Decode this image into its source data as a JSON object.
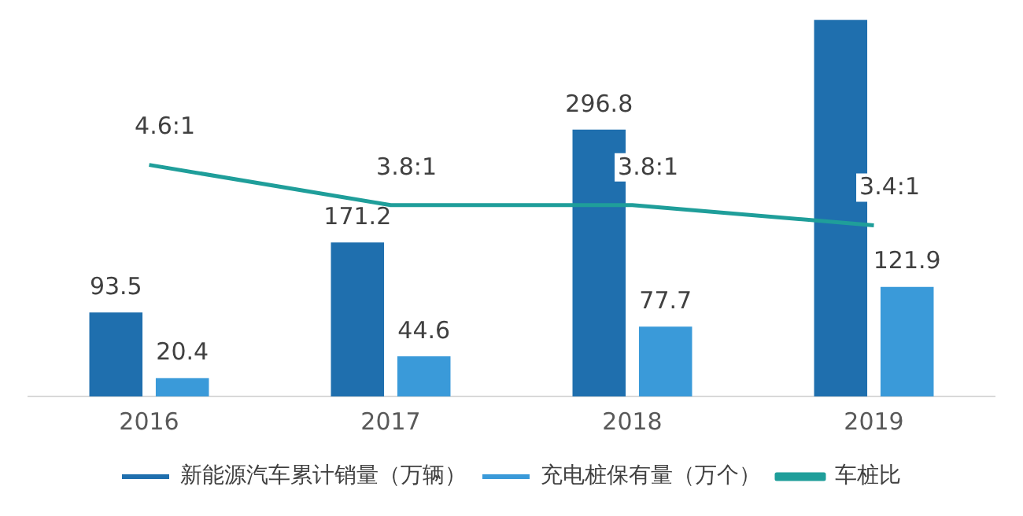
{
  "chart_data": {
    "type": "bar",
    "categories": [
      "2016",
      "2017",
      "2018",
      "2019"
    ],
    "series": [
      {
        "name": "新能源汽车累计销量（万辆）",
        "color": "#1f6fae",
        "values": [
          93.5,
          171.2,
          296.8,
          419
        ],
        "value_labels": [
          "93.5",
          "171.2",
          "296.8",
          null
        ]
      },
      {
        "name": "充电桩保有量（万个）",
        "color": "#3a9ad9",
        "values": [
          20.4,
          44.6,
          77.7,
          121.9
        ],
        "value_labels": [
          "20.4",
          "44.6",
          "77.7",
          "121.9"
        ]
      },
      {
        "name": "车桩比",
        "type": "line",
        "axis": "y2",
        "color": "#1f9e9a",
        "values": [
          4.6,
          3.8,
          3.8,
          3.4
        ],
        "value_labels": [
          "4.6:1",
          "3.8:1",
          "3.8:1",
          "3.4:1"
        ]
      }
    ],
    "ylim": [
      0,
      420
    ],
    "y2lim": [
      0,
      7.5
    ],
    "tick_labels": "x",
    "grid": false,
    "legend": "bottom",
    "marker": "none"
  }
}
